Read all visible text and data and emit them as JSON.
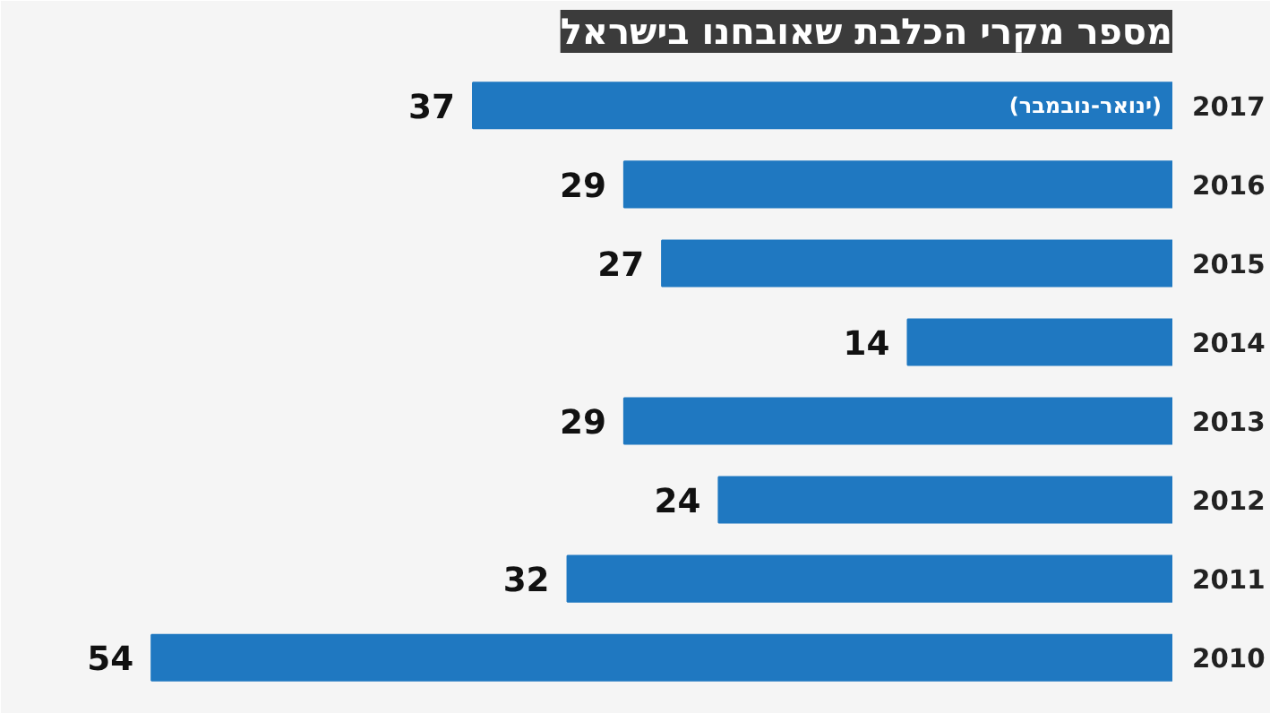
{
  "chart_data": {
    "type": "bar",
    "orientation": "horizontal",
    "title": "מספר מקרי הכלבת שאובחנו בישראל",
    "categories": [
      "2017",
      "2016",
      "2015",
      "2014",
      "2013",
      "2012",
      "2011",
      "2010"
    ],
    "values": [
      37,
      29,
      27,
      14,
      29,
      24,
      32,
      54
    ],
    "color": "#1f78c1",
    "data_labels": true,
    "grid": false,
    "annotations": [
      "(ינואר-נובמבר)"
    ]
  }
}
